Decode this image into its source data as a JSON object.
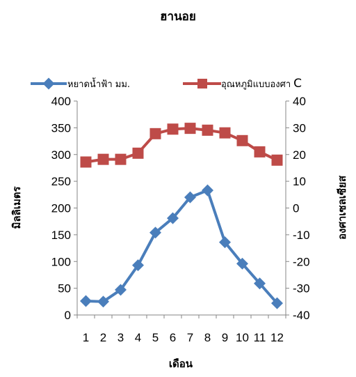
{
  "chart_data": {
    "type": "line",
    "title": "ฮานอย",
    "xlabel": "เดือน",
    "ylabel_left": "มิลลิเมตร",
    "ylabel_right": "องศาเซลเซียส",
    "categories": [
      "1",
      "2",
      "3",
      "4",
      "5",
      "6",
      "7",
      "8",
      "9",
      "10",
      "11",
      "12"
    ],
    "y_left": {
      "min": 0,
      "max": 400,
      "step": 50,
      "ticks": [
        "0",
        "50",
        "100",
        "150",
        "200",
        "250",
        "300",
        "350",
        "400"
      ]
    },
    "y_right": {
      "min": -40,
      "max": 40,
      "step": 10,
      "ticks": [
        "-40",
        "-30",
        "-20",
        "-10",
        "0",
        "10",
        "20",
        "30",
        "40"
      ]
    },
    "grid": false,
    "legend_position": "top",
    "series": [
      {
        "name": "หยาดน้ำฟ้า มม.",
        "axis": "left",
        "marker": "diamond",
        "color": "#4a7ebb",
        "values": [
          26,
          25,
          47,
          93,
          154,
          181,
          220,
          233,
          136,
          96,
          59,
          22
        ]
      },
      {
        "name": "อุณหภูมิแบบองศา",
        "name_suffix": "C",
        "axis": "right",
        "marker": "square",
        "color": "#be4b48",
        "values": [
          17.2,
          18.2,
          18.2,
          20.5,
          27.8,
          29.5,
          29.8,
          29.1,
          28.1,
          25.2,
          21.0,
          17.9
        ]
      }
    ]
  }
}
